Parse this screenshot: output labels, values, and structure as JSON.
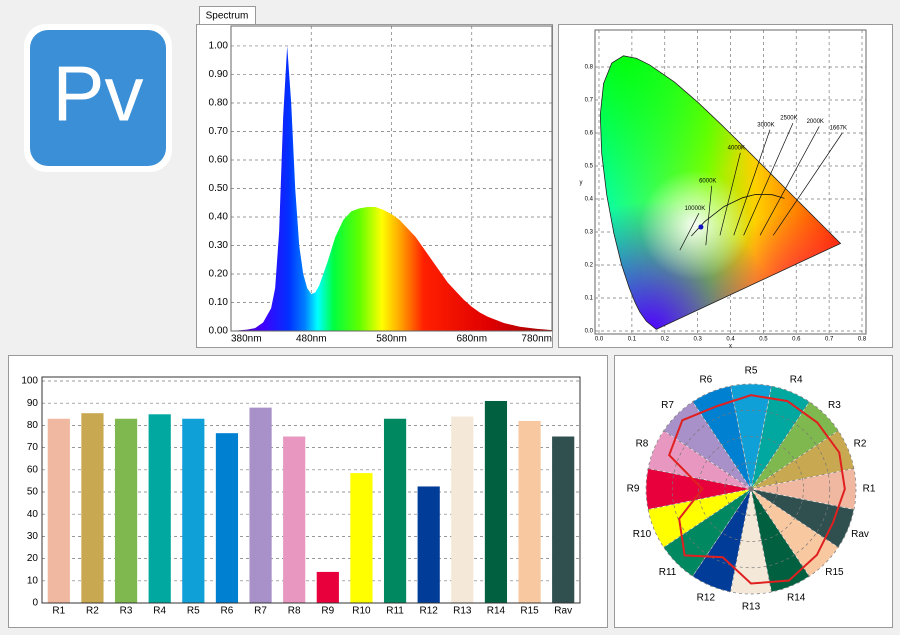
{
  "logo": "Pv",
  "tab": "Spectrum",
  "chart_data": [
    {
      "type": "area",
      "x": [
        380,
        400,
        410,
        420,
        430,
        435,
        440,
        445,
        450,
        455,
        460,
        465,
        470,
        475,
        480,
        485,
        490,
        500,
        510,
        520,
        530,
        540,
        550,
        560,
        570,
        580,
        590,
        600,
        610,
        620,
        630,
        640,
        650,
        660,
        670,
        680,
        690,
        700,
        720,
        740,
        760,
        780
      ],
      "values": [
        0,
        0.005,
        0.01,
        0.03,
        0.08,
        0.15,
        0.35,
        0.75,
        1.0,
        0.8,
        0.5,
        0.3,
        0.2,
        0.15,
        0.13,
        0.135,
        0.16,
        0.24,
        0.33,
        0.39,
        0.42,
        0.43,
        0.435,
        0.435,
        0.425,
        0.41,
        0.39,
        0.36,
        0.33,
        0.29,
        0.25,
        0.21,
        0.17,
        0.14,
        0.11,
        0.085,
        0.065,
        0.05,
        0.028,
        0.015,
        0.008,
        0.003
      ],
      "xlim": [
        380,
        780
      ],
      "ylim": [
        0,
        1.07
      ],
      "xticks": [
        {
          "value": 380,
          "label": "380nm"
        },
        {
          "value": 480,
          "label": "480nm"
        },
        {
          "value": 580,
          "label": "580nm"
        },
        {
          "value": 680,
          "label": "680nm"
        },
        {
          "value": 780,
          "label": "780nm"
        }
      ],
      "yticks": [
        {
          "value": 0,
          "label": "0.00"
        },
        {
          "value": 0.1,
          "label": "0.10"
        },
        {
          "value": 0.2,
          "label": "0.20"
        },
        {
          "value": 0.3,
          "label": "0.30"
        },
        {
          "value": 0.4,
          "label": "0.40"
        },
        {
          "value": 0.5,
          "label": "0.50"
        },
        {
          "value": 0.6,
          "label": "0.60"
        },
        {
          "value": 0.7,
          "label": "0.70"
        },
        {
          "value": 0.8,
          "label": "0.80"
        },
        {
          "value": 0.9,
          "label": "0.90"
        },
        {
          "value": 1,
          "label": "1.00"
        }
      ],
      "grid": true
    },
    {
      "type": "chromaticity",
      "xlabel": "x",
      "ylabel": "y",
      "xlim": [
        0,
        0.8
      ],
      "ylim": [
        0,
        0.9
      ],
      "xticks": [
        {
          "value": 0,
          "label": "0.0"
        },
        0.1,
        0.2,
        0.3,
        0.4,
        0.5,
        0.6,
        0.7,
        0.8
      ],
      "yticks": [
        {
          "value": 0,
          "label": "0.0"
        },
        0.1,
        0.2,
        0.3,
        0.4,
        0.5,
        0.6,
        0.7,
        0.8
      ],
      "grid": true,
      "locus": {
        "x": [
          0.1741,
          0.144,
          0.1241,
          0.1096,
          0.0913,
          0.0687,
          0.0454,
          0.0235,
          0.0082,
          0.0039,
          0.0139,
          0.0389,
          0.0743,
          0.1142,
          0.1547,
          0.2296,
          0.3016,
          0.3731,
          0.4441,
          0.5125,
          0.5752,
          0.627,
          0.6915,
          0.719,
          0.7347
        ],
        "y": [
          0.005,
          0.0297,
          0.0578,
          0.0868,
          0.1327,
          0.2007,
          0.295,
          0.4127,
          0.5384,
          0.6548,
          0.7502,
          0.812,
          0.8338,
          0.8262,
          0.8059,
          0.7543,
          0.6923,
          0.6245,
          0.5547,
          0.4866,
          0.4242,
          0.3725,
          0.3083,
          0.2809,
          0.2653
        ]
      },
      "planckian": {
        "x": [
          0.281,
          0.322,
          0.38,
          0.437,
          0.477,
          0.527,
          0.564
        ],
        "y": [
          0.288,
          0.332,
          0.377,
          0.404,
          0.414,
          0.413,
          0.402
        ]
      },
      "isotherms": [
        {
          "label": "10000K",
          "x": [
            0.246,
            0.304
          ],
          "y": [
            0.245,
            0.357
          ]
        },
        {
          "label": "6000K",
          "x": [
            0.325,
            0.343
          ],
          "y": [
            0.26,
            0.44
          ]
        },
        {
          "label": "4000K",
          "x": [
            0.368,
            0.43
          ],
          "y": [
            0.29,
            0.54
          ]
        },
        {
          "label": "3000K",
          "x": [
            0.41,
            0.52
          ],
          "y": [
            0.29,
            0.61
          ]
        },
        {
          "label": "2500K",
          "x": [
            0.44,
            0.59
          ],
          "y": [
            0.29,
            0.63
          ]
        },
        {
          "label": "2000K",
          "x": [
            0.49,
            0.67
          ],
          "y": [
            0.29,
            0.62
          ]
        },
        {
          "label": "1667K",
          "x": [
            0.53,
            0.74
          ],
          "y": [
            0.29,
            0.6
          ]
        }
      ],
      "point": {
        "x": 0.31,
        "y": 0.315,
        "color": "#1010c0"
      }
    },
    {
      "type": "bar",
      "categories": [
        "R1",
        "R2",
        "R3",
        "R4",
        "R5",
        "R6",
        "R7",
        "R8",
        "R9",
        "R10",
        "R11",
        "R12",
        "R13",
        "R14",
        "R15",
        "Rav"
      ],
      "values": [
        83,
        85.5,
        83,
        85,
        83,
        76.5,
        88,
        75,
        14,
        58.5,
        83,
        52.5,
        84,
        91,
        82,
        75
      ],
      "colors": [
        "#f0b8a0",
        "#c8a850",
        "#80b850",
        "#00a8a0",
        "#10a0d8",
        "#0080d0",
        "#a890c8",
        "#e898c0",
        "#e8003c",
        "#ffff00",
        "#008860",
        "#003c98",
        "#f4e8d8",
        "#006040",
        "#f8c8a0",
        "#305050"
      ],
      "ylim": [
        0,
        100
      ],
      "yticks": [
        0,
        10,
        20,
        30,
        40,
        50,
        60,
        70,
        80,
        90,
        100
      ],
      "grid": true
    },
    {
      "type": "radar",
      "categories": [
        "R1",
        "R2",
        "R3",
        "R4",
        "R5",
        "R6",
        "R7",
        "R8",
        "R9",
        "R10",
        "R11",
        "R12",
        "R13",
        "R14",
        "R15",
        "Rav"
      ],
      "values": [
        83,
        85.5,
        83,
        85,
        83,
        76.5,
        88,
        75,
        14,
        58.5,
        83,
        52.5,
        84,
        91,
        82,
        75
      ],
      "colors": [
        "#f0b8a0",
        "#c8a850",
        "#80b850",
        "#00a8a0",
        "#10a0d8",
        "#0080d0",
        "#a890c8",
        "#e898c0",
        "#e8003c",
        "#ffff00",
        "#008860",
        "#003c98",
        "#f4e8d8",
        "#006040",
        "#f8c8a0",
        "#305050"
      ],
      "rlim": [
        -60,
        100
      ],
      "rticks": [
        -20,
        20,
        60,
        100
      ],
      "line_color": "#e02020"
    }
  ]
}
